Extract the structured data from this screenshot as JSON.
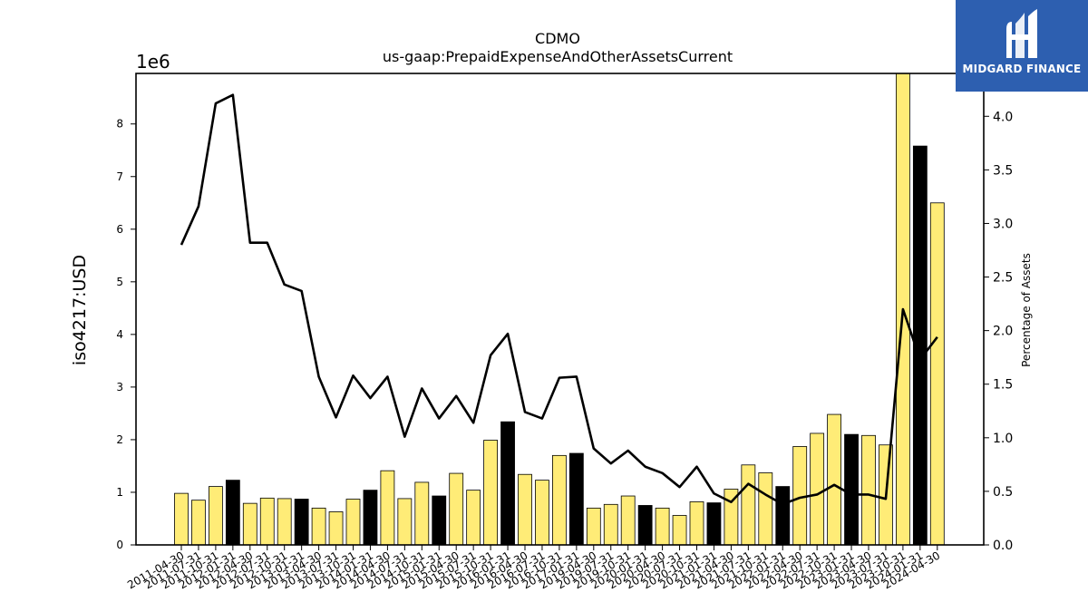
{
  "chart_data": {
    "type": "bar+line",
    "title": "CDMO",
    "subtitle": "us-gaap:PrepaidExpenseAndOtherAssetsCurrent",
    "ylabel": "iso4217:USD",
    "y_offset_label": "1e6",
    "y2label": "Percentage of Assets",
    "ylim": [
      0,
      8960000
    ],
    "y2lim": [
      0,
      4.4
    ],
    "yticks": [
      "0",
      "1",
      "2",
      "3",
      "4",
      "5",
      "6",
      "7",
      "8"
    ],
    "y2ticks": [
      "0.0",
      "0.5",
      "1.0",
      "1.5",
      "2.0",
      "2.5",
      "3.0",
      "3.5",
      "4.0"
    ],
    "categories": [
      "2011-04-30",
      "2011-07-31",
      "2011-10-31",
      "2012-01-31",
      "2012-04-30",
      "2012-07-31",
      "2012-10-31",
      "2013-01-31",
      "2013-04-30",
      "2013-07-31",
      "2013-10-31",
      "2014-01-31",
      "2014-04-30",
      "2014-07-31",
      "2014-10-31",
      "2015-01-31",
      "2015-04-30",
      "2015-07-31",
      "2015-10-31",
      "2016-01-31",
      "2016-04-30",
      "2016-07-31",
      "2016-10-31",
      "2017-01-31",
      "2019-04-30",
      "2019-07-31",
      "2019-10-31",
      "2020-01-31",
      "2020-04-30",
      "2020-07-31",
      "2020-10-31",
      "2021-01-31",
      "2021-04-30",
      "2021-07-31",
      "2021-10-31",
      "2022-01-31",
      "2022-04-30",
      "2022-07-31",
      "2022-10-31",
      "2023-01-31",
      "2023-04-30",
      "2023-07-31",
      "2023-10-31",
      "2024-01-31",
      "2024-04-30"
    ],
    "series": [
      {
        "type": "bar",
        "axis": "left",
        "values": [
          980000,
          850000,
          1110000,
          1230000,
          790000,
          890000,
          880000,
          870000,
          700000,
          630000,
          870000,
          1040000,
          1410000,
          880000,
          1190000,
          930000,
          1360000,
          1040000,
          1990000,
          2340000,
          1340000,
          1230000,
          1700000,
          1740000,
          700000,
          770000,
          930000,
          750000,
          700000,
          560000,
          820000,
          800000,
          1060000,
          1520000,
          1370000,
          1110000,
          1870000,
          2120000,
          2480000,
          2100000,
          2080000,
          1900000,
          8960000,
          7580000,
          6500000
        ],
        "highlight": [
          false,
          false,
          false,
          true,
          false,
          false,
          false,
          true,
          false,
          false,
          false,
          true,
          false,
          false,
          false,
          true,
          false,
          false,
          false,
          true,
          false,
          false,
          false,
          true,
          false,
          false,
          false,
          true,
          false,
          false,
          false,
          true,
          false,
          false,
          false,
          true,
          false,
          false,
          false,
          true,
          false,
          false,
          false,
          true,
          false
        ]
      },
      {
        "type": "line",
        "axis": "right",
        "values": [
          2.8,
          3.16,
          4.12,
          4.2,
          2.82,
          2.82,
          2.43,
          2.37,
          1.57,
          1.19,
          1.58,
          1.37,
          1.57,
          1.01,
          1.46,
          1.18,
          1.39,
          1.14,
          1.77,
          1.97,
          1.24,
          1.18,
          1.56,
          1.57,
          0.9,
          0.76,
          0.88,
          0.73,
          0.67,
          0.54,
          0.73,
          0.48,
          0.4,
          0.57,
          0.47,
          0.38,
          0.44,
          0.47,
          0.56,
          0.47,
          0.47,
          0.43,
          2.2,
          1.73,
          1.94
        ]
      }
    ],
    "colors": {
      "bar": "#ffec77",
      "bar_highlight": "#000000",
      "bar_edge": "#000000",
      "line": "#000000"
    }
  },
  "logo": {
    "text": "MIDGARD FINANCE",
    "color": "#2d5fb0"
  }
}
